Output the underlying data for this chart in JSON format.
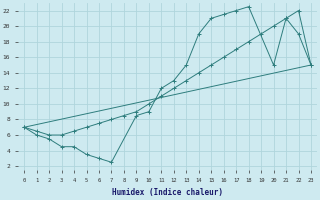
{
  "xlabel": "Humidex (Indice chaleur)",
  "bg_color": "#ceeaf0",
  "grid_color": "#b0d5dc",
  "line_color": "#2e7d7d",
  "xlim": [
    -0.5,
    23.5
  ],
  "ylim": [
    1.5,
    23
  ],
  "xticks": [
    0,
    1,
    2,
    3,
    4,
    5,
    6,
    7,
    8,
    9,
    10,
    11,
    12,
    13,
    14,
    15,
    16,
    17,
    18,
    19,
    20,
    21,
    22,
    23
  ],
  "yticks": [
    2,
    4,
    6,
    8,
    10,
    12,
    14,
    16,
    18,
    20,
    22
  ],
  "line1_x": [
    0,
    1,
    2,
    3,
    4,
    5,
    6,
    7,
    9,
    10,
    11,
    12,
    13,
    14,
    15,
    16,
    17,
    18,
    20,
    21,
    22,
    23
  ],
  "line1_y": [
    7,
    6,
    5.5,
    4.5,
    4.5,
    3.5,
    3,
    2.5,
    8.5,
    9,
    12,
    13,
    15,
    19,
    21,
    21.5,
    22,
    22.5,
    15,
    21,
    19,
    15
  ],
  "line2_x": [
    0,
    1,
    2,
    3,
    4,
    5,
    6,
    7,
    8,
    9,
    10,
    11,
    12,
    13,
    14,
    15,
    16,
    17,
    18,
    19,
    20,
    21,
    22,
    23
  ],
  "line2_y": [
    7,
    6.5,
    6,
    6,
    6.5,
    7,
    7.5,
    8,
    8.5,
    9,
    10,
    11,
    12,
    13,
    14,
    15,
    16,
    17,
    18,
    19,
    20,
    21,
    22,
    15
  ],
  "line3_x": [
    0,
    23
  ],
  "line3_y": [
    7,
    15
  ]
}
